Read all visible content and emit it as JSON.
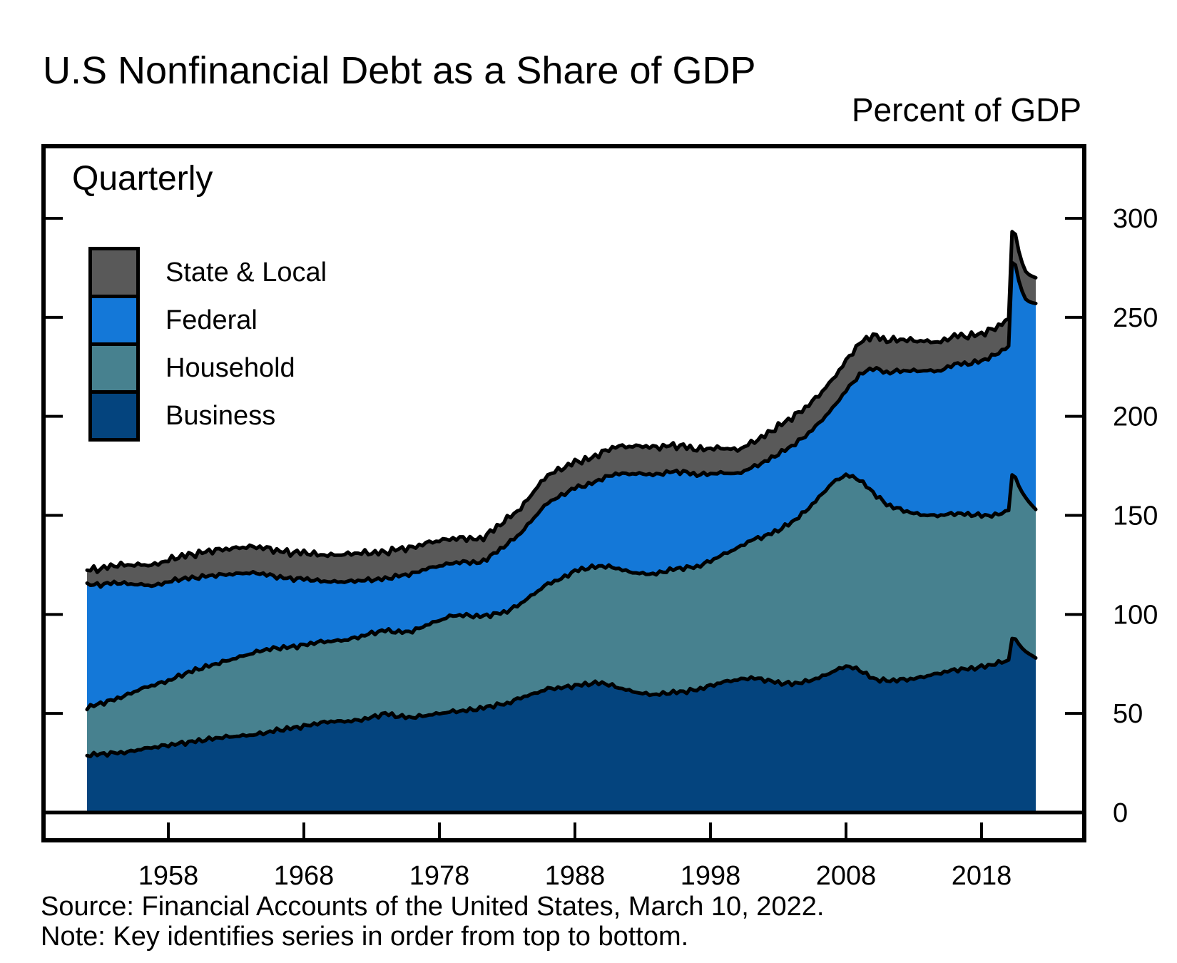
{
  "title": "U.S Nonfinancial Debt as a Share of GDP",
  "unit_label": "Percent of GDP",
  "frequency_label": "Quarterly",
  "legend": {
    "items": [
      {
        "label": "State & Local",
        "series": "State & Local"
      },
      {
        "label": "Federal",
        "series": "Federal"
      },
      {
        "label": "Household",
        "series": "Household"
      },
      {
        "label": "Business",
        "series": "Business"
      }
    ]
  },
  "footer": {
    "source": "Source: Financial Accounts of the United States, March 10, 2022.",
    "note": "Note: Key identifies series in order from top to bottom."
  },
  "colors": {
    "business": "#04447E",
    "household": "#47818F",
    "federal": "#1478D8",
    "state_local": "#595959",
    "outline": "#000000",
    "background": "#FFFFFF"
  },
  "chart_data": {
    "type": "area",
    "stacked": true,
    "title": "U.S Nonfinancial Debt as a Share of GDP",
    "ylabel": "Percent of GDP",
    "xlim": [
      1952,
      2022
    ],
    "ylim": [
      0,
      335
    ],
    "x_ticks": [
      1958,
      1968,
      1978,
      1988,
      1998,
      2008,
      2018
    ],
    "y_ticks": [
      0,
      50,
      100,
      150,
      200,
      250,
      300
    ],
    "legend_position": "upper-left-inside",
    "grid": false,
    "x": [
      1952,
      1953,
      1954,
      1955,
      1956,
      1957,
      1958,
      1959,
      1960,
      1961,
      1962,
      1963,
      1964,
      1965,
      1966,
      1967,
      1968,
      1969,
      1970,
      1971,
      1972,
      1973,
      1974,
      1975,
      1976,
      1977,
      1978,
      1979,
      1980,
      1981,
      1982,
      1983,
      1984,
      1985,
      1986,
      1987,
      1988,
      1989,
      1990,
      1991,
      1992,
      1993,
      1994,
      1995,
      1996,
      1997,
      1998,
      1999,
      2000,
      2001,
      2002,
      2003,
      2004,
      2005,
      2006,
      2007,
      2008,
      2009,
      2010,
      2011,
      2012,
      2013,
      2014,
      2015,
      2016,
      2017,
      2018,
      2019,
      2020,
      2020.3,
      2020.55,
      2020.8,
      2021.05,
      2021.3,
      2021.65,
      2022
    ],
    "series": [
      {
        "name": "Business",
        "color": "#04447E",
        "values": [
          29,
          29.5,
          30,
          30.5,
          32,
          33,
          34,
          35,
          36,
          37,
          38,
          38.5,
          39,
          40,
          41.5,
          42.5,
          43.5,
          45,
          46,
          46,
          46.5,
          48,
          50,
          48.5,
          48,
          49,
          50,
          51,
          51.5,
          52.5,
          54,
          55,
          58,
          60,
          62.5,
          63,
          64,
          65,
          65.5,
          63.5,
          61.5,
          60,
          59.5,
          60.5,
          61,
          62,
          64,
          66,
          67,
          68,
          67,
          65.5,
          65,
          66,
          68,
          71,
          74,
          72,
          67.5,
          66.5,
          67,
          67.5,
          69,
          70.5,
          72,
          72.5,
          73.5,
          75,
          77,
          90,
          87,
          84.5,
          82.5,
          81,
          79.5,
          78
        ]
      },
      {
        "name": "Household",
        "color": "#47818F",
        "values": [
          24,
          25.5,
          27,
          29,
          30.5,
          31.5,
          32.5,
          34.5,
          36,
          37,
          38,
          39.5,
          41,
          42,
          41.5,
          41,
          41,
          41,
          40.5,
          41,
          42,
          42.5,
          42,
          42.5,
          43.5,
          45.5,
          47,
          48.5,
          48,
          46.5,
          46,
          46.5,
          47.5,
          50.5,
          53,
          55,
          58,
          58.5,
          59,
          60,
          60,
          60.5,
          61,
          62,
          62.5,
          62,
          63,
          64.5,
          66.5,
          69.5,
          72.5,
          77,
          81.5,
          86,
          91,
          95.5,
          96.5,
          96,
          94,
          89,
          86,
          83.5,
          81,
          79.5,
          79,
          78,
          76.5,
          75,
          75.5,
          84,
          81,
          79.5,
          78.5,
          77.5,
          76,
          75
        ]
      },
      {
        "name": "Federal",
        "color": "#1478D8",
        "values": [
          62,
          60,
          59,
          56,
          52.5,
          50,
          50,
          48.5,
          46.5,
          45.5,
          44,
          42.5,
          41,
          38.5,
          36,
          34.5,
          33.5,
          31,
          30,
          29.5,
          28.5,
          27,
          26,
          28.5,
          29,
          28.5,
          27.5,
          26.5,
          27,
          27,
          30.5,
          34,
          35.5,
          38.5,
          41,
          42,
          42,
          42,
          44,
          47.5,
          49.5,
          50.5,
          50,
          49.5,
          48.5,
          46.5,
          44,
          41,
          37.5,
          36.5,
          37.5,
          38.5,
          38.5,
          38,
          37.5,
          37.5,
          42.5,
          53,
          63,
          66.5,
          70,
          72,
          73,
          73,
          75.5,
          76,
          78,
          81,
          83,
          112,
          106,
          103,
          101,
          100,
          102,
          104
        ]
      },
      {
        "name": "State & Local",
        "color": "#595959",
        "values": [
          7.5,
          8,
          8.8,
          9.5,
          10,
          10.5,
          11,
          11.5,
          12,
          12.5,
          12.8,
          13,
          13.2,
          13.3,
          13.2,
          13.2,
          13.3,
          13.2,
          13.4,
          13.8,
          14,
          13.6,
          13.4,
          13.6,
          13.2,
          13,
          12.8,
          12.3,
          12,
          11.8,
          12.3,
          12.8,
          12.5,
          13.5,
          14,
          13.5,
          13,
          12.8,
          13.2,
          13.8,
          13.8,
          14,
          13.8,
          13.3,
          13,
          12.8,
          12.8,
          12.5,
          12,
          12.5,
          13.3,
          14,
          14.3,
          14.3,
          14.2,
          14.5,
          15,
          16,
          16.5,
          16.3,
          15.8,
          15.3,
          14.8,
          14.5,
          14.3,
          14,
          13.7,
          13.5,
          13.8,
          16,
          15.3,
          14.8,
          14.3,
          13.9,
          13.4,
          13
        ]
      }
    ]
  }
}
